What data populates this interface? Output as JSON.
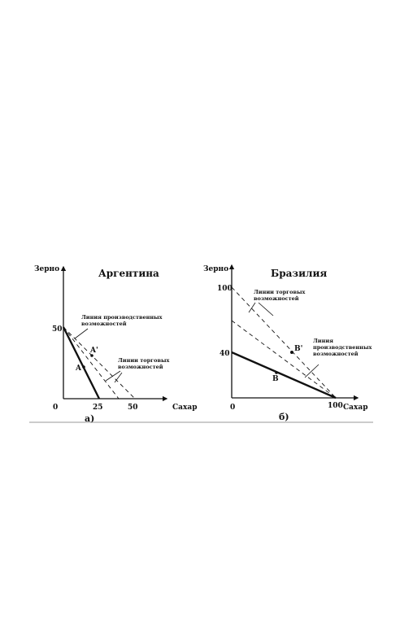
{
  "chart_data": [
    {
      "type": "line",
      "title": "Аргентина",
      "xlabel": "Сахар",
      "ylabel": "Зерно",
      "subcaption": "а)",
      "xlim": [
        0,
        60
      ],
      "ylim": [
        0,
        72
      ],
      "x_ticks": [
        {
          "value": 0,
          "label": "0"
        },
        {
          "value": 25,
          "label": "25"
        },
        {
          "value": 50,
          "label": "50"
        }
      ],
      "y_ticks": [
        {
          "value": 50,
          "label": "50"
        }
      ],
      "series": [
        {
          "style": "solid",
          "points": [
            [
              0,
              50
            ],
            [
              25,
              0
            ]
          ]
        },
        {
          "style": "dashed",
          "points": [
            [
              0,
              50
            ],
            [
              38,
              0
            ]
          ]
        },
        {
          "style": "dashed",
          "points": [
            [
              0,
              50
            ],
            [
              50,
              0
            ]
          ]
        }
      ],
      "points": [
        {
          "label": "A",
          "x": 10,
          "y": 30
        },
        {
          "label": "A'",
          "x": 20,
          "y": 37
        }
      ],
      "annotations": [
        {
          "lines": [
            "Линия производственных",
            "возможностей"
          ]
        },
        {
          "lines": [
            "Линии торговых",
            "возможностей"
          ]
        }
      ]
    },
    {
      "type": "line",
      "title": "Бразилия",
      "xlabel": "Сахар",
      "ylabel": "Зерно",
      "subcaption": "б)",
      "xlim": [
        0,
        120
      ],
      "ylim": [
        0,
        120
      ],
      "x_ticks": [
        {
          "value": 0,
          "label": "0"
        },
        {
          "value": 100,
          "label": "100"
        }
      ],
      "y_ticks": [
        {
          "value": 40,
          "label": "40"
        },
        {
          "value": 100,
          "label": "100"
        }
      ],
      "series": [
        {
          "style": "solid",
          "points": [
            [
              0,
              40
            ],
            [
              100,
              0
            ]
          ]
        },
        {
          "style": "dashed",
          "points": [
            [
              0,
              73
            ],
            [
              100,
              0
            ]
          ]
        },
        {
          "style": "dashed",
          "points": [
            [
              0,
              100
            ],
            [
              100,
              0
            ]
          ]
        }
      ],
      "points": [
        {
          "label": "B",
          "x": 43,
          "y": 23
        },
        {
          "label": "B'",
          "x": 58,
          "y": 42
        }
      ],
      "annotations": [
        {
          "lines": [
            "Линии торговых",
            "возможностей"
          ]
        },
        {
          "lines": [
            "Линия",
            "производственных",
            "возможностей"
          ]
        }
      ]
    }
  ]
}
